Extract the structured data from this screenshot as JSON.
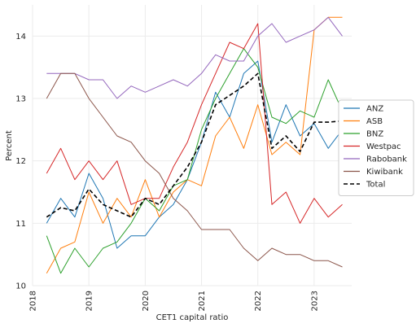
{
  "chart_data": {
    "type": "line",
    "xlabel": "CET1 capital ratio",
    "ylabel": "Percent",
    "ylim": [
      10,
      14.5
    ],
    "yticks": [
      10,
      11,
      12,
      13,
      14
    ],
    "xlim": [
      "2018-01-01",
      "2023-09-01"
    ],
    "xticks": [
      "2018",
      "2019",
      "2020",
      "2021",
      "2022",
      "2023"
    ],
    "grid": true,
    "legend": "right",
    "x": [
      "2018-04",
      "2018-07",
      "2018-10",
      "2019-01",
      "2019-04",
      "2019-07",
      "2019-10",
      "2020-01",
      "2020-04",
      "2020-07",
      "2020-10",
      "2021-01",
      "2021-04",
      "2021-07",
      "2021-10",
      "2022-01",
      "2022-04",
      "2022-07",
      "2022-10",
      "2023-01",
      "2023-04",
      "2023-07"
    ],
    "series": [
      {
        "name": "ANZ",
        "color": "#1f77b4",
        "dash": false,
        "values": [
          11.0,
          11.4,
          11.1,
          11.8,
          11.4,
          10.6,
          10.8,
          10.8,
          11.1,
          11.3,
          11.7,
          12.3,
          13.1,
          12.7,
          13.4,
          13.6,
          12.3,
          12.9,
          12.4,
          12.6,
          12.2,
          12.5
        ]
      },
      {
        "name": "ASB",
        "color": "#ff7f0e",
        "dash": false,
        "values": [
          10.2,
          10.6,
          10.7,
          11.5,
          11.0,
          11.4,
          11.1,
          11.7,
          11.1,
          11.5,
          11.7,
          11.6,
          12.4,
          12.7,
          12.2,
          12.9,
          12.1,
          12.3,
          12.1,
          14.1,
          14.3,
          14.3
        ]
      },
      {
        "name": "BNZ",
        "color": "#2ca02c",
        "dash": false,
        "values": [
          10.8,
          10.2,
          10.6,
          10.3,
          10.6,
          10.7,
          11.0,
          11.4,
          11.2,
          11.6,
          11.7,
          12.5,
          13.0,
          13.4,
          13.8,
          13.5,
          12.7,
          12.6,
          12.8,
          12.7,
          13.3,
          12.8
        ]
      },
      {
        "name": "Westpac",
        "color": "#d62728",
        "dash": false,
        "values": [
          11.8,
          12.2,
          11.7,
          12.0,
          11.7,
          12.0,
          11.3,
          11.4,
          11.4,
          11.9,
          12.3,
          12.9,
          13.4,
          13.9,
          13.8,
          14.2,
          11.3,
          11.5,
          11.0,
          11.4,
          11.1,
          11.3
        ]
      },
      {
        "name": "Rabobank",
        "color": "#9467bd",
        "dash": false,
        "values": [
          13.4,
          13.4,
          13.4,
          13.3,
          13.3,
          13.0,
          13.2,
          13.1,
          13.2,
          13.3,
          13.2,
          13.4,
          13.7,
          13.6,
          13.6,
          14.0,
          14.2,
          13.9,
          14.0,
          14.1,
          14.3,
          14.0
        ]
      },
      {
        "name": "Kiwibank",
        "color": "#8c564b",
        "dash": false,
        "values": [
          13.0,
          13.4,
          13.4,
          13.0,
          12.7,
          12.4,
          12.3,
          12.0,
          11.8,
          11.4,
          11.2,
          10.9,
          10.9,
          10.9,
          10.6,
          10.4,
          10.6,
          10.5,
          10.5,
          10.4,
          10.4,
          10.3
        ]
      },
      {
        "name": "Total",
        "color": "#000000",
        "dash": true,
        "values": [
          11.1,
          11.25,
          11.2,
          11.55,
          11.3,
          11.2,
          11.1,
          11.4,
          11.3,
          11.6,
          11.9,
          12.3,
          12.9,
          13.05,
          13.2,
          13.4,
          12.2,
          12.4,
          12.15,
          12.62,
          12.62,
          12.64
        ]
      }
    ]
  }
}
